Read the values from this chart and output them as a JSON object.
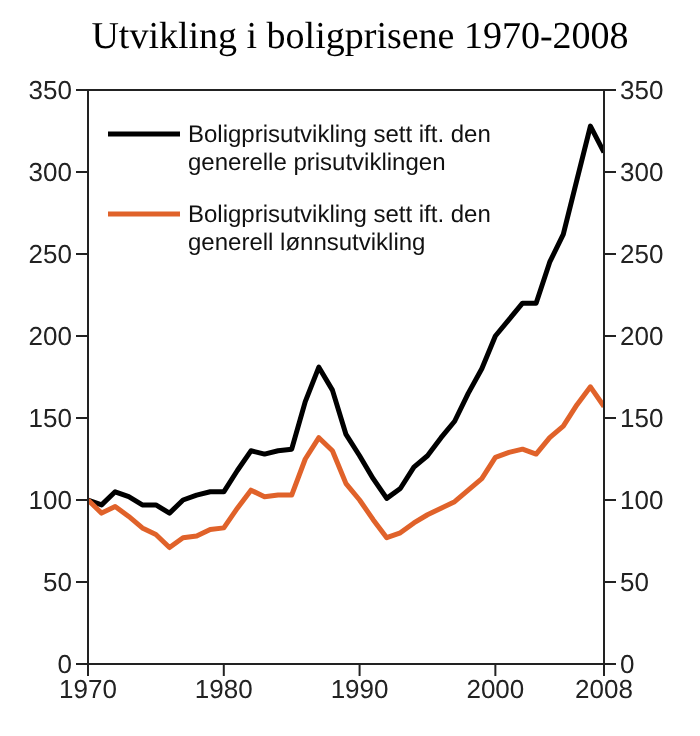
{
  "chart_data": {
    "type": "line",
    "title": "Utvikling i boligprisene 1970-2008",
    "x": [
      1970,
      1971,
      1972,
      1973,
      1974,
      1975,
      1976,
      1977,
      1978,
      1979,
      1980,
      1981,
      1982,
      1983,
      1984,
      1985,
      1986,
      1987,
      1988,
      1989,
      1990,
      1991,
      1992,
      1993,
      1994,
      1995,
      1996,
      1997,
      1998,
      1999,
      2000,
      2001,
      2002,
      2003,
      2004,
      2005,
      2006,
      2007,
      2008
    ],
    "series": [
      {
        "name": "Boligprisutvikling sett ift. den generelle prisutviklingen",
        "color": "#000000",
        "values": [
          100,
          97,
          105,
          102,
          97,
          97,
          92,
          100,
          103,
          105,
          105,
          118,
          130,
          128,
          130,
          131,
          160,
          181,
          167,
          140,
          127,
          113,
          101,
          107,
          120,
          127,
          138,
          148,
          165,
          180,
          200,
          210,
          220,
          220,
          245,
          262,
          295,
          328,
          312
        ]
      },
      {
        "name": "Boligprisutvikling sett ift. den generell lønnsutvikling",
        "color": "#e0622a",
        "values": [
          100,
          92,
          96,
          90,
          83,
          79,
          71,
          77,
          78,
          82,
          83,
          95,
          106,
          102,
          103,
          103,
          125,
          138,
          130,
          110,
          100,
          88,
          77,
          80,
          86,
          91,
          95,
          99,
          106,
          113,
          126,
          129,
          131,
          128,
          138,
          145,
          158,
          169,
          157
        ]
      }
    ],
    "xlim": [
      1970,
      2008
    ],
    "xticks": [
      1970,
      1980,
      1990,
      2000,
      2008
    ],
    "ylim": [
      0,
      350
    ],
    "yticks": [
      0,
      50,
      100,
      150,
      200,
      250,
      300,
      350
    ],
    "y2lim": [
      0,
      350
    ],
    "y2ticks": [
      0,
      50,
      100,
      150,
      200,
      250,
      300,
      350
    ],
    "legend": "top left",
    "grid": false,
    "marker": "none",
    "line_style": "solid"
  }
}
